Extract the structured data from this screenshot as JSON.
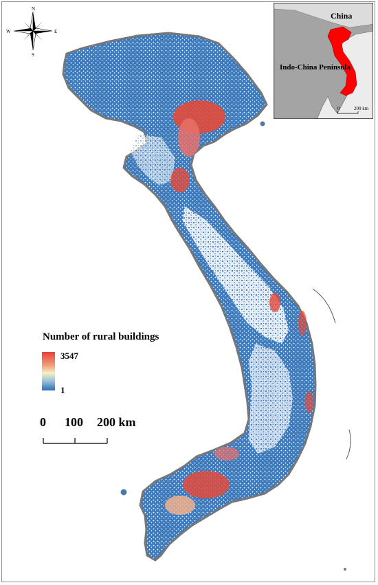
{
  "legend": {
    "title": "Number of rural buildings",
    "max_label": "3547",
    "min_label": "1",
    "color_high": "#e8403a",
    "color_mid": "#f6f1c4",
    "color_low": "#2d6fb3"
  },
  "scale_bar": {
    "labels": [
      "0",
      "100",
      "200 km"
    ]
  },
  "compass": {
    "north": "N",
    "south": "S",
    "east": "E",
    "west": "W"
  },
  "inset": {
    "china_label": "China",
    "peninsula_label": "Indo-China Peninsula",
    "scale_start": "0",
    "scale_end": "200 km",
    "highlight_color": "#ff0000"
  },
  "map_colors": {
    "country_fill": "#3d7bbf",
    "hotspot": "#e24a3a",
    "outline": "#777777"
  }
}
